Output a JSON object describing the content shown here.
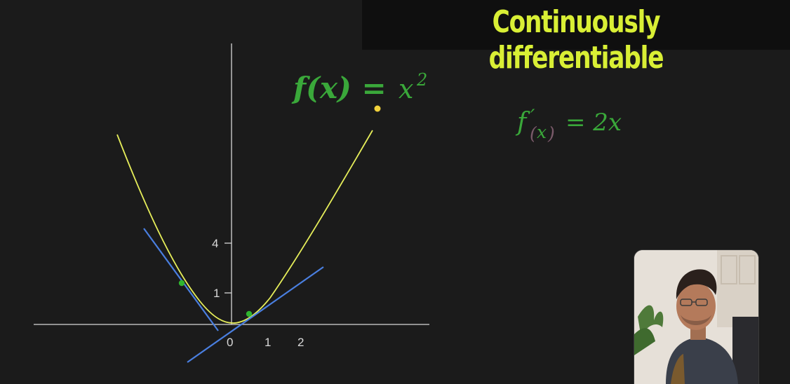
{
  "title": "Continuously differentiable",
  "colors": {
    "background": "#1b1b1b",
    "title": "#d9ef35",
    "formula": "#3aa83a",
    "curve": "#e6ee5a",
    "tangent": "#4a7fe0",
    "point": "#2fb52f",
    "marker": "#f2d23c",
    "axis": "#d8d8d8"
  },
  "function_formula": {
    "lhs": "f(x) =",
    "base": "x",
    "exponent": "2"
  },
  "derivative_formula": {
    "f": "f",
    "prime": "′",
    "paren_open": "(",
    "var": "x",
    "paren_close": ")",
    "rhs": "= 2x"
  },
  "axes": {
    "x_ticks": [
      "0",
      "1",
      "2"
    ],
    "y_ticks": [
      "4",
      "1"
    ]
  },
  "webcam_icon": "person-webcam-icon"
}
